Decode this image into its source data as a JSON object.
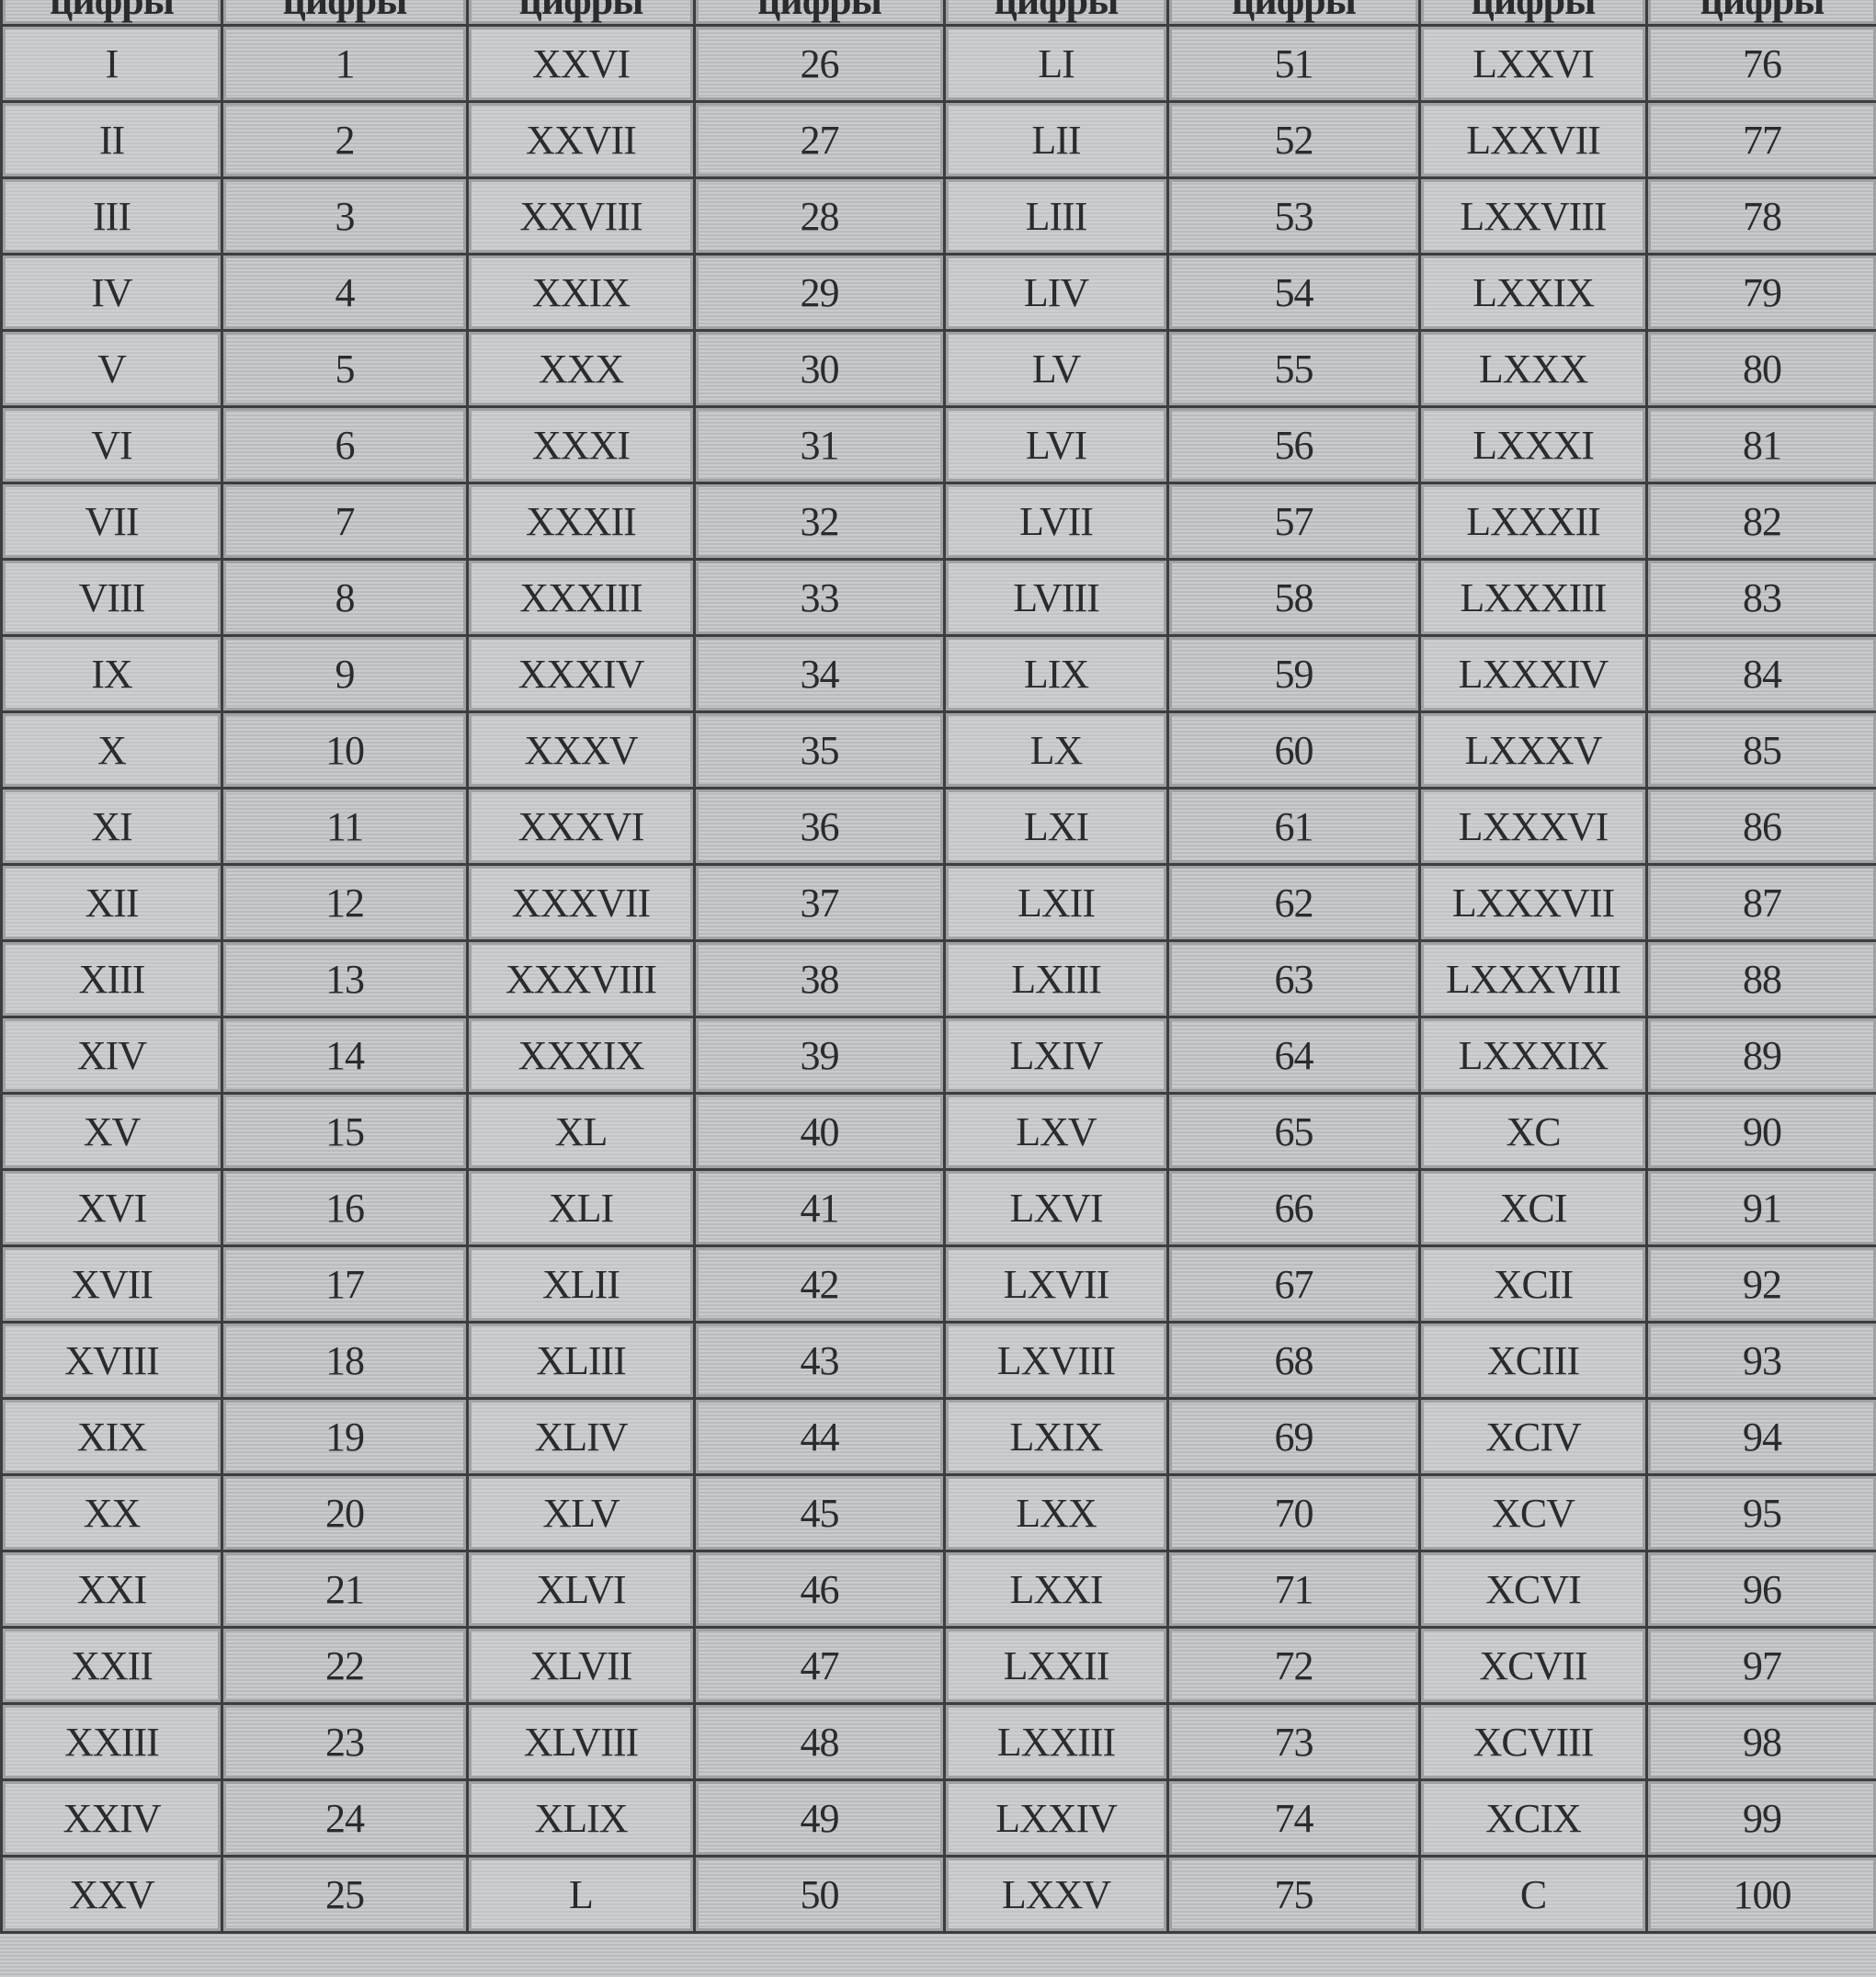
{
  "table": {
    "headers": [
      "цифры",
      "цифры",
      "цифры",
      "цифры",
      "цифры",
      "цифры",
      "цифры",
      "цифры"
    ],
    "rows": [
      [
        "I",
        "1",
        "XXVI",
        "26",
        "LI",
        "51",
        "LXXVI",
        "76"
      ],
      [
        "II",
        "2",
        "XXVII",
        "27",
        "LII",
        "52",
        "LXXVII",
        "77"
      ],
      [
        "III",
        "3",
        "XXVIII",
        "28",
        "LIII",
        "53",
        "LXXVIII",
        "78"
      ],
      [
        "IV",
        "4",
        "XXIX",
        "29",
        "LIV",
        "54",
        "LXXIX",
        "79"
      ],
      [
        "V",
        "5",
        "XXX",
        "30",
        "LV",
        "55",
        "LXXX",
        "80"
      ],
      [
        "VI",
        "6",
        "XXXI",
        "31",
        "LVI",
        "56",
        "LXXXI",
        "81"
      ],
      [
        "VII",
        "7",
        "XXXII",
        "32",
        "LVII",
        "57",
        "LXXXII",
        "82"
      ],
      [
        "VIII",
        "8",
        "XXXIII",
        "33",
        "LVIII",
        "58",
        "LXXXIII",
        "83"
      ],
      [
        "IX",
        "9",
        "XXXIV",
        "34",
        "LIX",
        "59",
        "LXXXIV",
        "84"
      ],
      [
        "X",
        "10",
        "XXXV",
        "35",
        "LX",
        "60",
        "LXXXV",
        "85"
      ],
      [
        "XI",
        "11",
        "XXXVI",
        "36",
        "LXI",
        "61",
        "LXXXVI",
        "86"
      ],
      [
        "XII",
        "12",
        "XXXVII",
        "37",
        "LXII",
        "62",
        "LXXXVII",
        "87"
      ],
      [
        "XIII",
        "13",
        "XXXVIII",
        "38",
        "LXIII",
        "63",
        "LXXXVIII",
        "88"
      ],
      [
        "XIV",
        "14",
        "XXXIX",
        "39",
        "LXIV",
        "64",
        "LXXXIX",
        "89"
      ],
      [
        "XV",
        "15",
        "XL",
        "40",
        "LXV",
        "65",
        "XC",
        "90"
      ],
      [
        "XVI",
        "16",
        "XLI",
        "41",
        "LXVI",
        "66",
        "XCI",
        "91"
      ],
      [
        "XVII",
        "17",
        "XLII",
        "42",
        "LXVII",
        "67",
        "XCII",
        "92"
      ],
      [
        "XVIII",
        "18",
        "XLIII",
        "43",
        "LXVIII",
        "68",
        "XCIII",
        "93"
      ],
      [
        "XIX",
        "19",
        "XLIV",
        "44",
        "LXIX",
        "69",
        "XCIV",
        "94"
      ],
      [
        "XX",
        "20",
        "XLV",
        "45",
        "LXX",
        "70",
        "XCV",
        "95"
      ],
      [
        "XXI",
        "21",
        "XLVI",
        "46",
        "LXXI",
        "71",
        "XCVI",
        "96"
      ],
      [
        "XXII",
        "22",
        "XLVII",
        "47",
        "LXXII",
        "72",
        "XCVII",
        "97"
      ],
      [
        "XXIII",
        "23",
        "XLVIII",
        "48",
        "LXXIII",
        "73",
        "XCVIII",
        "98"
      ],
      [
        "XXIV",
        "24",
        "XLIX",
        "49",
        "LXXIV",
        "74",
        "XCIX",
        "99"
      ],
      [
        "XXV",
        "25",
        "L",
        "50",
        "LXXV",
        "75",
        "C",
        "100"
      ]
    ]
  }
}
